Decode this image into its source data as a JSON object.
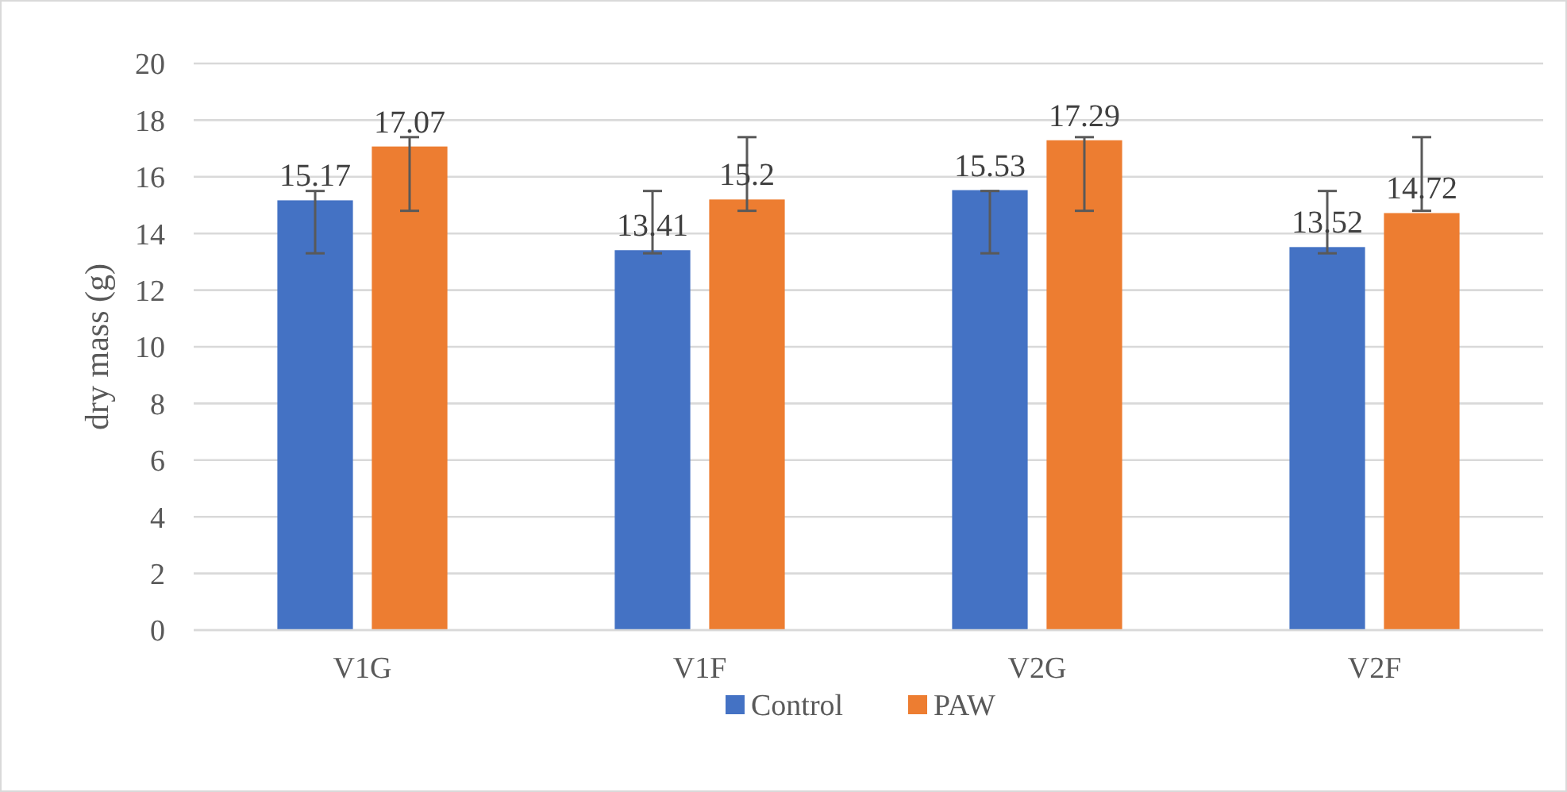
{
  "chart_data": {
    "type": "bar",
    "ylabel": "dry mass (g)",
    "categories": [
      "V1G",
      "V1F",
      "V2G",
      "V2F"
    ],
    "series": [
      {
        "name": "Control",
        "color": "#4472c4",
        "values": [
          15.17,
          13.41,
          15.53,
          13.52
        ],
        "errors": [
          [
            13.3,
            15.5
          ],
          [
            13.3,
            15.5
          ],
          [
            13.3,
            15.5
          ],
          [
            13.3,
            15.5
          ]
        ]
      },
      {
        "name": "PAW",
        "color": "#ed7d31",
        "values": [
          17.07,
          15.2,
          17.29,
          14.72
        ],
        "errors": [
          [
            14.8,
            17.4
          ],
          [
            14.8,
            17.4
          ],
          [
            14.8,
            17.4
          ],
          [
            14.8,
            17.4
          ]
        ]
      }
    ],
    "ylim": [
      0,
      20
    ],
    "yticks": [
      0,
      2,
      4,
      6,
      8,
      10,
      12,
      14,
      16,
      18,
      20
    ],
    "grid": "y",
    "legend": "bottom",
    "data_labels": true
  }
}
